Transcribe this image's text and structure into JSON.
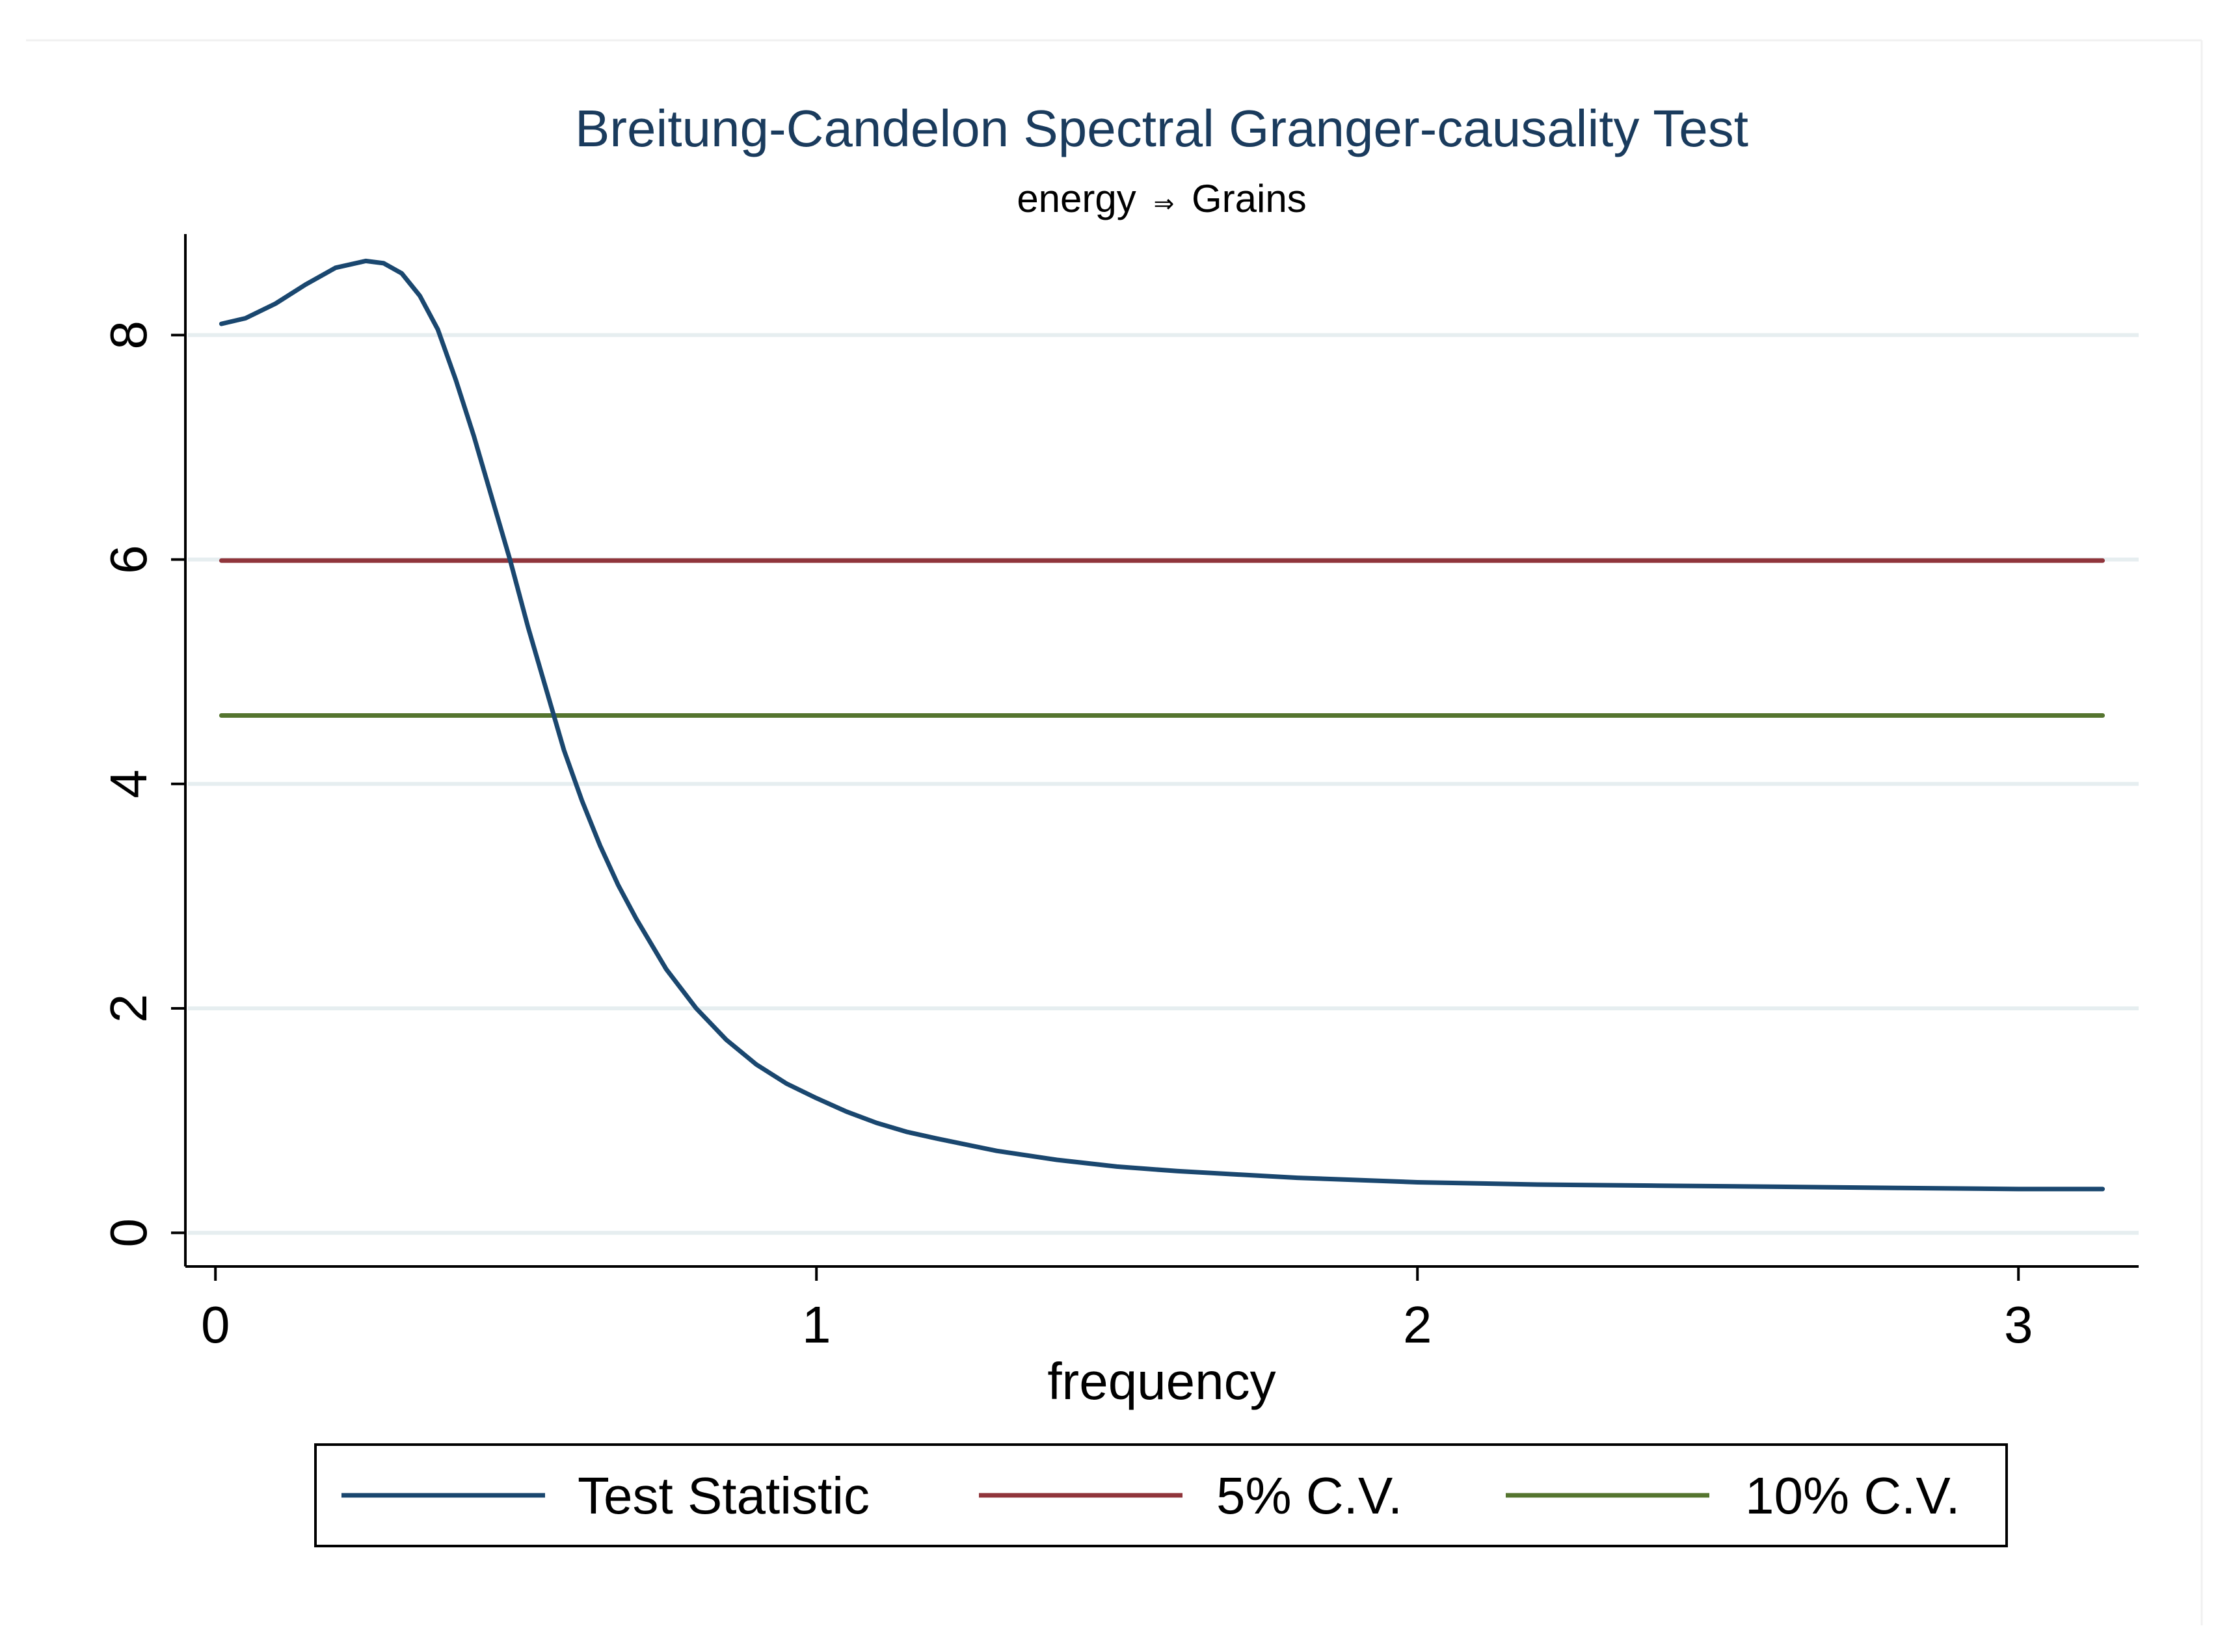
{
  "chart_data": {
    "type": "line",
    "title": "Breitung-Candelon Spectral Granger-causality Test",
    "subtitle": {
      "from": "energy",
      "arrow": "⇒",
      "to": "Grains"
    },
    "xlabel": "frequency",
    "ylabel": "",
    "xlim": [
      -0.05,
      3.2
    ],
    "ylim": [
      -0.3,
      8.9
    ],
    "xticks": [
      0,
      1,
      2,
      3
    ],
    "xtick_labels": [
      "0",
      "1",
      "2",
      "3"
    ],
    "yticks": [
      0,
      2,
      4,
      6,
      8
    ],
    "ytick_labels": [
      "0",
      "2",
      "4",
      "6",
      "8"
    ],
    "grid": true,
    "legend_position": "bottom",
    "series": [
      {
        "name": "Test Statistic",
        "color": "#1a476f",
        "x": [
          0.01,
          0.05,
          0.1,
          0.15,
          0.2,
          0.25,
          0.28,
          0.31,
          0.34,
          0.37,
          0.4,
          0.43,
          0.46,
          0.49,
          0.52,
          0.55,
          0.58,
          0.61,
          0.64,
          0.67,
          0.7,
          0.75,
          0.8,
          0.85,
          0.9,
          0.95,
          1.0,
          1.05,
          1.1,
          1.15,
          1.2,
          1.3,
          1.4,
          1.5,
          1.6,
          1.7,
          1.8,
          2.0,
          2.2,
          2.4,
          2.6,
          2.8,
          3.0,
          3.14
        ],
        "values": [
          8.1,
          8.15,
          8.28,
          8.45,
          8.6,
          8.66,
          8.64,
          8.55,
          8.35,
          8.05,
          7.6,
          7.1,
          6.55,
          6.0,
          5.4,
          4.85,
          4.3,
          3.85,
          3.45,
          3.1,
          2.8,
          2.35,
          2.0,
          1.72,
          1.5,
          1.33,
          1.2,
          1.08,
          0.98,
          0.9,
          0.84,
          0.73,
          0.65,
          0.59,
          0.55,
          0.52,
          0.49,
          0.45,
          0.43,
          0.42,
          0.41,
          0.4,
          0.39,
          0.39
        ]
      },
      {
        "name": "5% C.V.",
        "color": "#90353b",
        "x": [
          0.01,
          3.14
        ],
        "values": [
          5.99,
          5.99
        ]
      },
      {
        "name": "10% C.V.",
        "color": "#55752f",
        "x": [
          0.01,
          3.14
        ],
        "values": [
          4.61,
          4.61
        ]
      }
    ]
  }
}
